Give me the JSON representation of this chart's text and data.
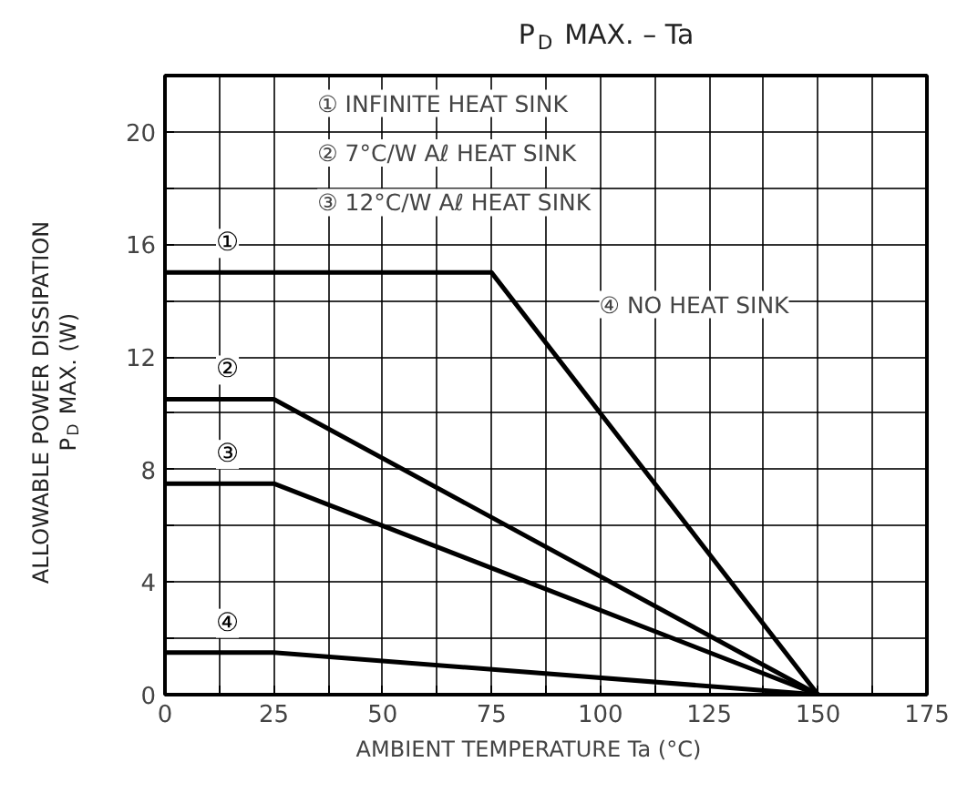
{
  "chart_data": {
    "type": "line",
    "title": "P$_{D}$ MAX. – Ta",
    "xlabel": "AMBIENT TEMPERATURE   Ta    (°C)",
    "ylabel": "ALLOWABLE POWER DISSIPATION\nP$_{D}$ MAX.  (W)",
    "series": [
      {
        "name": "①",
        "color": "#000000",
        "x": [
          0,
          75,
          150
        ],
        "values": [
          15,
          15,
          0
        ]
      },
      {
        "name": "②",
        "color": "#000000",
        "x": [
          0,
          25,
          150
        ],
        "values": [
          10.5,
          10.5,
          0
        ]
      },
      {
        "name": "③",
        "color": "#000000",
        "x": [
          0,
          25,
          150
        ],
        "values": [
          7.5,
          7.5,
          0
        ]
      },
      {
        "name": "④",
        "color": "#000000",
        "x": [
          0,
          25,
          150
        ],
        "values": [
          1.5,
          1.5,
          0
        ]
      }
    ],
    "annotations": [
      "① INFINITE HEAT SINK",
      "② 7°C/W Aℓ HEAT SINK",
      "③ 12°C/W Aℓ HEAT SINK",
      "④ NO HEAT SINK"
    ],
    "xlim": [
      0,
      175
    ],
    "ylim": [
      0,
      22
    ],
    "xticks": [
      0,
      {
        "value": 12.5,
        "label": null
      },
      25,
      {
        "value": 37.5,
        "label": null
      },
      50,
      {
        "value": 62.5,
        "label": null
      },
      75,
      {
        "value": 87.5,
        "label": null
      },
      100,
      {
        "value": 112.5,
        "label": null
      },
      125,
      {
        "value": 137.5,
        "label": null
      },
      150,
      {
        "value": 162.5,
        "label": null
      },
      175
    ],
    "yticks": [
      0,
      {
        "value": 2,
        "label": null
      },
      4,
      {
        "value": 6,
        "label": null
      },
      8,
      {
        "value": 10,
        "label": null
      },
      12,
      {
        "value": 14,
        "label": null
      },
      16,
      {
        "value": 18,
        "label": null
      },
      20,
      {
        "value": 22,
        "label": null
      }
    ],
    "grid": true,
    "legend": "top left",
    "marker": "none",
    "line_style": "solid"
  }
}
